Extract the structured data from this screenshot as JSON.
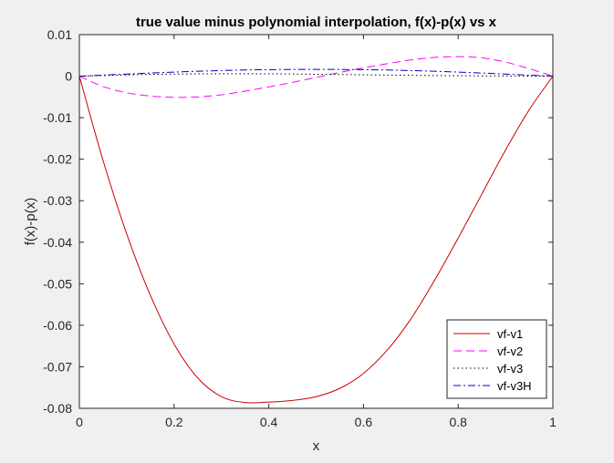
{
  "figure": {
    "background": "#f0f0f0"
  },
  "chart_data": {
    "type": "line",
    "title": "true value minus polynomial interpolation, f(x)-p(x) vs x",
    "xlabel": "x",
    "ylabel": "f(x)-p(x)",
    "xlim": [
      0,
      1
    ],
    "ylim": [
      -0.08,
      0.01
    ],
    "xticks": [
      0,
      0.2,
      0.4,
      0.6,
      0.8,
      1
    ],
    "xtick_labels": [
      "0",
      "0.2",
      "0.4",
      "0.6",
      "0.8",
      "1"
    ],
    "yticks": [
      0.01,
      0,
      -0.01,
      -0.02,
      -0.03,
      -0.04,
      -0.05,
      -0.06,
      -0.07,
      -0.08
    ],
    "ytick_labels": [
      "0.01",
      "0",
      "-0.01",
      "-0.02",
      "-0.03",
      "-0.04",
      "-0.05",
      "-0.06",
      "-0.07",
      "-0.08"
    ],
    "grid": false,
    "legend_position": "bottom-right",
    "x": [
      0,
      0.05,
      0.1,
      0.15,
      0.2,
      0.25,
      0.3,
      0.35,
      0.4,
      0.45,
      0.5,
      0.55,
      0.6,
      0.65,
      0.7,
      0.75,
      0.8,
      0.85,
      0.9,
      0.95,
      1
    ],
    "series": [
      {
        "name": "vf-v1",
        "color": "#cc0000",
        "dash": "solid",
        "values": [
          0,
          -0.0203,
          -0.038,
          -0.0528,
          -0.0645,
          -0.0727,
          -0.0772,
          -0.0786,
          -0.0785,
          -0.0781,
          -0.0772,
          -0.0752,
          -0.0716,
          -0.066,
          -0.0585,
          -0.0492,
          -0.039,
          -0.0284,
          -0.0178,
          -0.0081,
          0
        ]
      },
      {
        "name": "vf-v2",
        "color": "#ff00ff",
        "dash": "dashed",
        "values": [
          0,
          -0.0025,
          -0.004,
          -0.0048,
          -0.0051,
          -0.005,
          -0.0045,
          -0.0036,
          -0.0026,
          -0.0015,
          -0.0003,
          0.0009,
          0.002,
          0.003,
          0.0039,
          0.0045,
          0.0047,
          0.0044,
          0.0034,
          0.0018,
          0
        ]
      },
      {
        "name": "vf-v3",
        "color": "#000000",
        "dash": "dotted",
        "values": [
          0,
          0.00015,
          0.0003,
          0.00042,
          0.0005,
          0.00055,
          0.00058,
          0.00058,
          0.00056,
          0.00052,
          0.00046,
          0.0004,
          0.00033,
          0.00026,
          0.0002,
          0.00015,
          0.0001,
          7e-05,
          4e-05,
          2e-05,
          0
        ]
      },
      {
        "name": "vf-v3H",
        "color": "#0000cc",
        "dash": "dashdot",
        "values": [
          0,
          0.00025,
          0.0005,
          0.00075,
          0.00098,
          0.00118,
          0.00135,
          0.00148,
          0.00157,
          0.00162,
          0.00164,
          0.00162,
          0.00157,
          0.00148,
          0.00135,
          0.00118,
          0.00098,
          0.00075,
          0.0005,
          0.00025,
          0
        ]
      }
    ]
  }
}
